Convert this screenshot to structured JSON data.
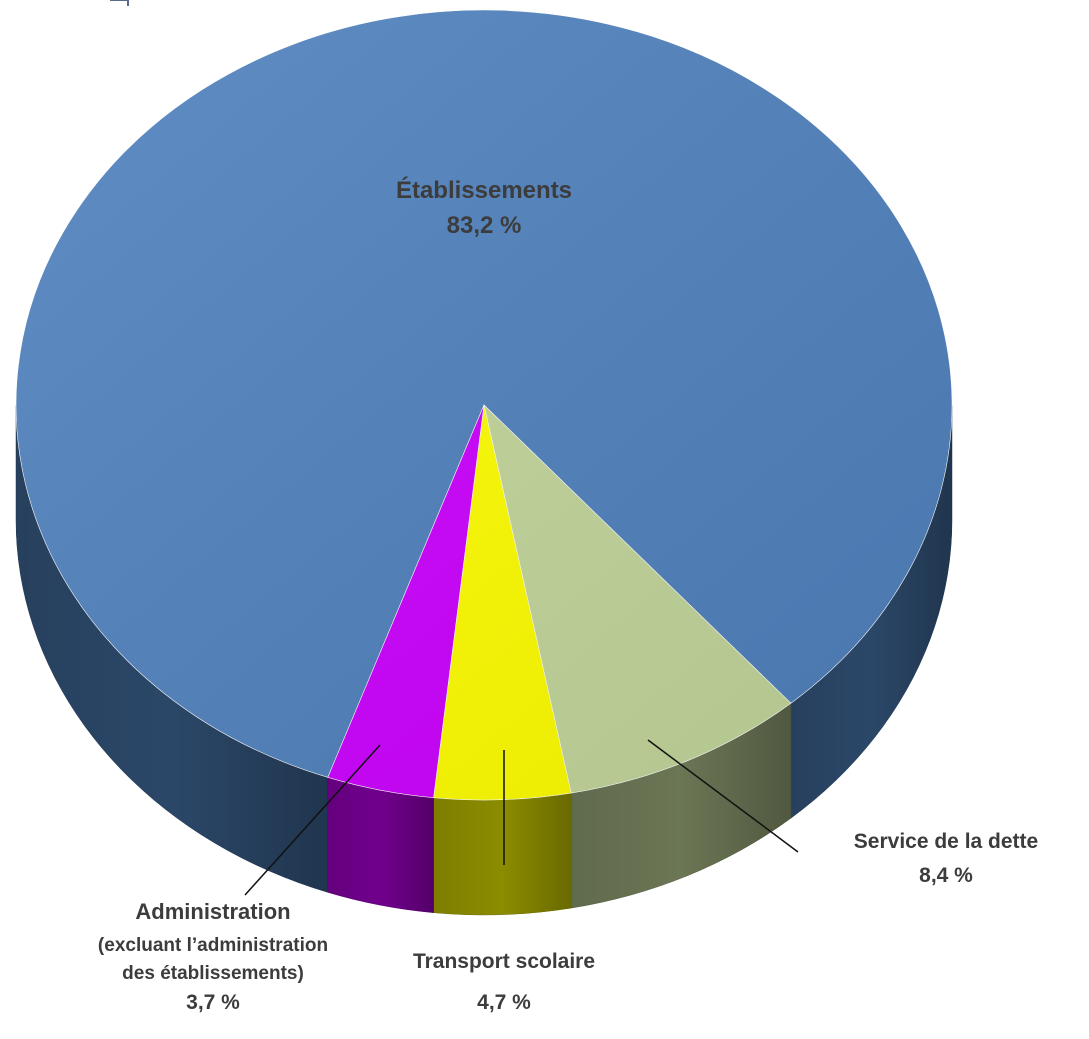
{
  "chart_data": {
    "type": "pie",
    "title": "",
    "style": "3d",
    "slices": [
      {
        "label": "Établissements",
        "value_label": "83,2 %",
        "value": 83.2,
        "color": "#4f81bd"
      },
      {
        "label": "Service de la dette",
        "value_label": "8,4 %",
        "value": 8.4,
        "color": "#c3d69b"
      },
      {
        "label": "Transport scolaire",
        "value_label": "4,7 %",
        "value": 4.7,
        "color": "#ffff00"
      },
      {
        "label": "Administration",
        "sublabel_1": "(excluant l’administration",
        "sublabel_2": "des établissements)",
        "value_label": "3,7 %",
        "value": 3.7,
        "color": "#cc00ff"
      }
    ]
  }
}
